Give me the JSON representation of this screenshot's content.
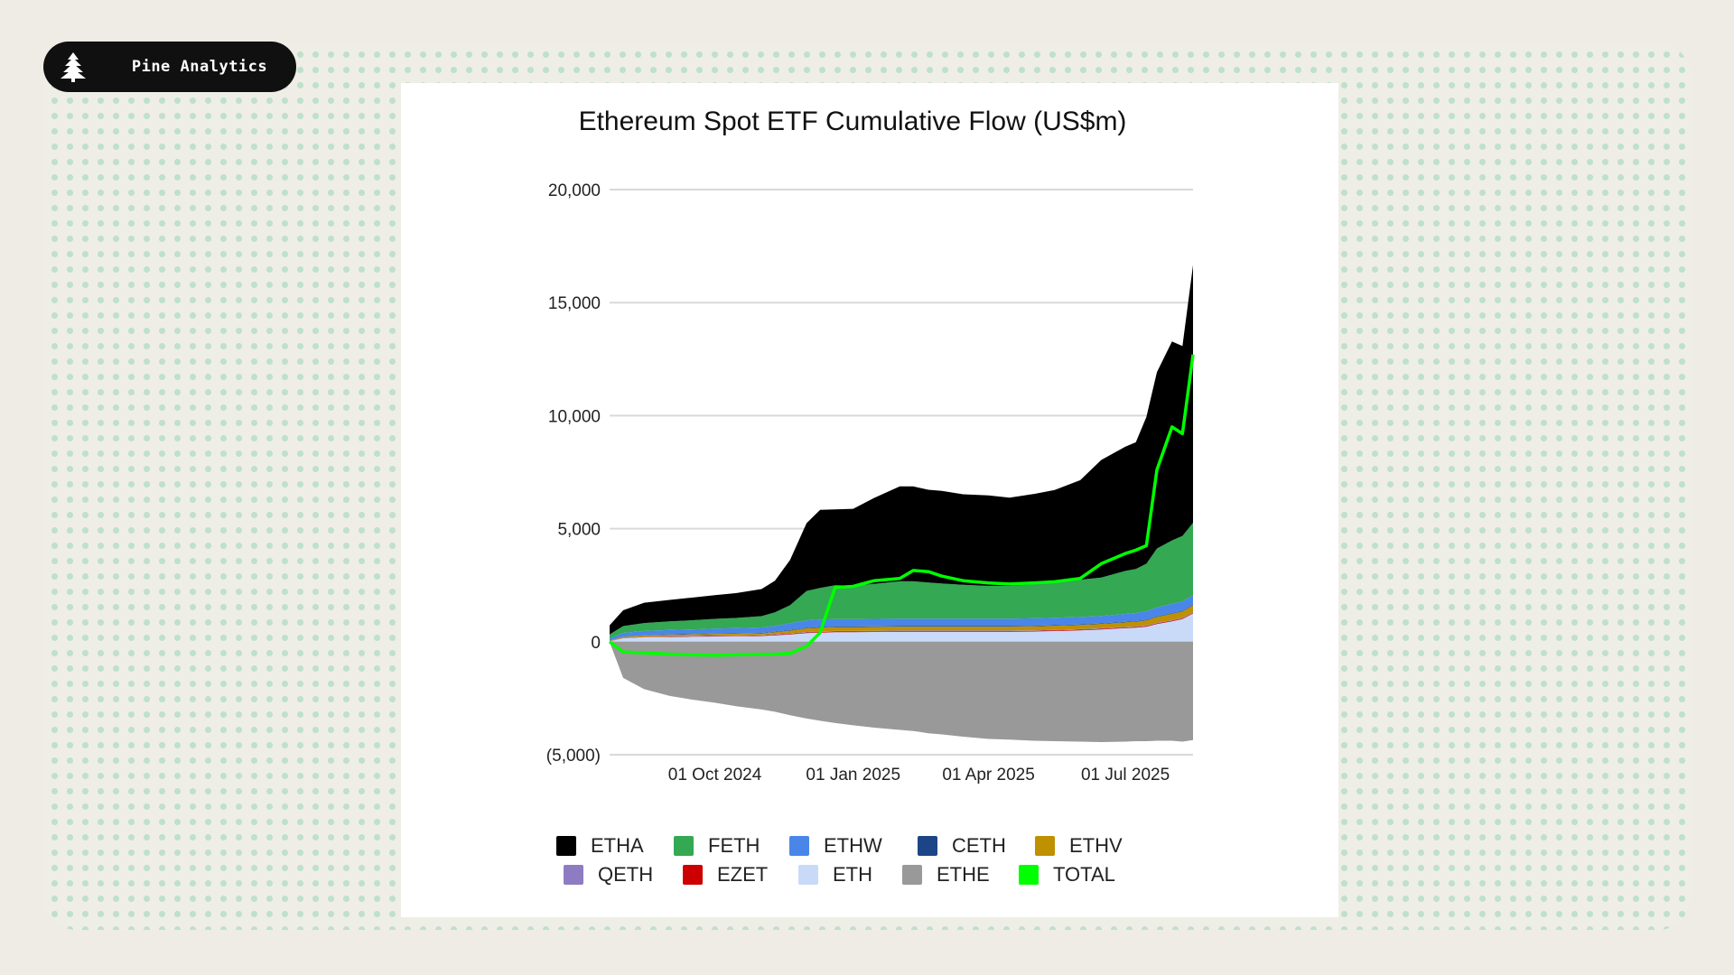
{
  "brand": {
    "name": "Pine Analytics",
    "icon": "pine-tree-icon"
  },
  "chart_data": {
    "type": "area",
    "title": "Ethereum Spot ETF Cumulative Flow (US$m)",
    "xlabel": "",
    "ylabel": "",
    "x_range": [
      "2024-07-23",
      "2025-08-15"
    ],
    "ylim": [
      -5000,
      20000
    ],
    "y_ticks": [
      20000,
      15000,
      10000,
      5000,
      0,
      -5000
    ],
    "y_tick_labels": [
      "20,000",
      "15,000",
      "10,000",
      "5,000",
      "0",
      "(5,000)"
    ],
    "x_ticks": [
      "2024-10-01",
      "2025-01-01",
      "2025-04-01",
      "2025-07-01"
    ],
    "x_tick_labels": [
      "01 Oct 2024",
      "01 Jan 2025",
      "01 Apr 2025",
      "01 Jul 2025"
    ],
    "grid": true,
    "legend_position": "bottom",
    "stacked": true,
    "dates": [
      "2024-07-23",
      "2024-08-01",
      "2024-08-15",
      "2024-09-01",
      "2024-09-15",
      "2024-10-01",
      "2024-10-15",
      "2024-11-01",
      "2024-11-10",
      "2024-11-20",
      "2024-12-01",
      "2024-12-10",
      "2024-12-20",
      "2025-01-01",
      "2025-01-15",
      "2025-02-01",
      "2025-02-10",
      "2025-02-20",
      "2025-03-01",
      "2025-03-15",
      "2025-04-01",
      "2025-04-15",
      "2025-05-01",
      "2025-05-15",
      "2025-06-01",
      "2025-06-15",
      "2025-07-01",
      "2025-07-08",
      "2025-07-15",
      "2025-07-22",
      "2025-08-01",
      "2025-08-08",
      "2025-08-15"
    ],
    "positive_series": [
      {
        "name": "ETH",
        "color": "#c9daf8",
        "values": [
          10,
          150,
          200,
          210,
          220,
          230,
          240,
          250,
          280,
          320,
          380,
          400,
          420,
          420,
          430,
          440,
          440,
          440,
          440,
          440,
          440,
          440,
          450,
          470,
          500,
          540,
          600,
          620,
          660,
          780,
          900,
          1000,
          1250
        ]
      },
      {
        "name": "EZET",
        "color": "#cc0000",
        "values": [
          5,
          10,
          15,
          20,
          20,
          25,
          25,
          25,
          30,
          30,
          30,
          30,
          30,
          30,
          30,
          30,
          30,
          30,
          30,
          30,
          30,
          30,
          30,
          30,
          30,
          30,
          30,
          30,
          30,
          30,
          30,
          30,
          30
        ]
      },
      {
        "name": "QETH",
        "color": "#8e7cc3",
        "values": [
          5,
          10,
          10,
          15,
          15,
          20,
          20,
          20,
          20,
          20,
          20,
          25,
          25,
          25,
          25,
          25,
          25,
          25,
          25,
          25,
          25,
          25,
          25,
          25,
          25,
          25,
          25,
          25,
          25,
          25,
          25,
          25,
          25
        ]
      },
      {
        "name": "ETHV",
        "color": "#bf9000",
        "values": [
          20,
          40,
          50,
          60,
          65,
          70,
          70,
          75,
          90,
          120,
          160,
          170,
          170,
          170,
          170,
          170,
          170,
          170,
          170,
          170,
          170,
          170,
          175,
          180,
          185,
          190,
          200,
          210,
          230,
          260,
          280,
          280,
          300
        ]
      },
      {
        "name": "CETH",
        "color": "#1c4587",
        "values": [
          5,
          10,
          10,
          15,
          15,
          15,
          15,
          20,
          20,
          25,
          25,
          25,
          25,
          25,
          25,
          25,
          25,
          25,
          25,
          25,
          25,
          25,
          25,
          25,
          25,
          25,
          25,
          25,
          25,
          25,
          25,
          25,
          25
        ]
      },
      {
        "name": "ETHW",
        "color": "#4a86e8",
        "values": [
          100,
          170,
          190,
          200,
          210,
          220,
          230,
          240,
          260,
          300,
          330,
          330,
          330,
          330,
          330,
          330,
          330,
          330,
          330,
          330,
          330,
          330,
          330,
          330,
          330,
          330,
          350,
          360,
          380,
          400,
          420,
          420,
          430
        ]
      },
      {
        "name": "FETH",
        "color": "#34a853",
        "values": [
          180,
          300,
          350,
          380,
          400,
          430,
          450,
          500,
          600,
          800,
          1300,
          1400,
          1500,
          1480,
          1550,
          1650,
          1650,
          1600,
          1550,
          1500,
          1450,
          1450,
          1500,
          1550,
          1650,
          1700,
          1900,
          1950,
          2100,
          2600,
          2800,
          2900,
          3200
        ]
      },
      {
        "name": "ETHA",
        "color": "#000000",
        "values": [
          400,
          700,
          900,
          950,
          1000,
          1050,
          1100,
          1200,
          1400,
          2000,
          3000,
          3450,
          3350,
          3400,
          3800,
          4200,
          4200,
          4100,
          4100,
          4000,
          4000,
          3900,
          4000,
          4100,
          4400,
          5200,
          5500,
          5600,
          6500,
          7800,
          8800,
          8400,
          11400
        ]
      }
    ],
    "negative_series": [
      {
        "name": "ETHE",
        "color": "#999999",
        "values": [
          -20,
          -1600,
          -2100,
          -2400,
          -2550,
          -2700,
          -2850,
          -3000,
          -3100,
          -3250,
          -3400,
          -3500,
          -3600,
          -3700,
          -3800,
          -3900,
          -3950,
          -4050,
          -4100,
          -4200,
          -4300,
          -4330,
          -4380,
          -4400,
          -4420,
          -4440,
          -4420,
          -4400,
          -4400,
          -4380,
          -4380,
          -4420,
          -4350
        ]
      }
    ],
    "total_series": {
      "name": "TOTAL",
      "color": "#00ff00",
      "values": [
        0,
        -450,
        -500,
        -550,
        -580,
        -600,
        -580,
        -560,
        -550,
        -520,
        -200,
        400,
        2400,
        2450,
        2700,
        2800,
        3150,
        3100,
        2900,
        2700,
        2600,
        2550,
        2600,
        2650,
        2800,
        3450,
        3900,
        4050,
        4250,
        7600,
        9500,
        9200,
        12700
      ]
    },
    "legend": [
      {
        "name": "ETHA",
        "color": "#000000"
      },
      {
        "name": "FETH",
        "color": "#34a853"
      },
      {
        "name": "ETHW",
        "color": "#4a86e8"
      },
      {
        "name": "CETH",
        "color": "#1c4587"
      },
      {
        "name": "ETHV",
        "color": "#bf9000"
      },
      {
        "name": "QETH",
        "color": "#8e7cc3"
      },
      {
        "name": "EZET",
        "color": "#cc0000"
      },
      {
        "name": "ETH",
        "color": "#c9daf8"
      },
      {
        "name": "ETHE",
        "color": "#999999"
      },
      {
        "name": "TOTAL",
        "color": "#00ff00"
      }
    ]
  }
}
